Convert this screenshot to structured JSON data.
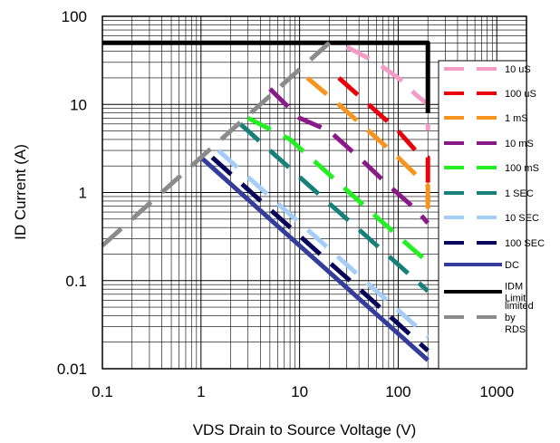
{
  "chart_data": {
    "type": "line",
    "xlabel": "VDS Drain to Source Voltage (V)",
    "ylabel": "ID Current (A)",
    "x_scale": "log",
    "y_scale": "log",
    "xlim": [
      0.1,
      2000
    ],
    "ylim": [
      0.01,
      100
    ],
    "grid": true,
    "legend_position": "right, inside plot",
    "x_ticks": [
      {
        "value": 0.1,
        "label": "0.1"
      },
      {
        "value": 1,
        "label": "1"
      },
      {
        "value": 10,
        "label": "10"
      },
      {
        "value": 100,
        "label": "100"
      },
      {
        "value": 1000,
        "label": "1000"
      }
    ],
    "y_ticks": [
      {
        "value": 100,
        "label": "100"
      },
      {
        "value": 10,
        "label": "10"
      },
      {
        "value": 1,
        "label": "1"
      },
      {
        "value": 0.1,
        "label": "0.1"
      },
      {
        "value": 0.01,
        "label": "0.01"
      }
    ],
    "series": [
      {
        "name": "10 uS",
        "color": "#f59cc6",
        "dashed": true,
        "points": [
          [
            30,
            45
          ],
          [
            60,
            30
          ],
          [
            100,
            20
          ],
          [
            150,
            13
          ],
          [
            200,
            10
          ],
          [
            200,
            5
          ]
        ]
      },
      {
        "name": "100 uS",
        "color": "#e8000b",
        "dashed": true,
        "points": [
          [
            25,
            20
          ],
          [
            50,
            10
          ],
          [
            100,
            5
          ],
          [
            150,
            3
          ],
          [
            200,
            2.5
          ],
          [
            200,
            0.8
          ]
        ]
      },
      {
        "name": "1 mS",
        "color": "#f7941d",
        "dashed": true,
        "points": [
          [
            12,
            20
          ],
          [
            25,
            10
          ],
          [
            50,
            5
          ],
          [
            100,
            2.5
          ],
          [
            150,
            1.6
          ],
          [
            200,
            1.2
          ],
          [
            200,
            0.5
          ]
        ]
      },
      {
        "name": "10 mS",
        "color": "#8b1a89",
        "dashed": true,
        "points": [
          [
            5,
            15
          ],
          [
            10,
            7
          ],
          [
            20,
            5
          ],
          [
            40,
            2.5
          ],
          [
            80,
            1.2
          ],
          [
            150,
            0.65
          ],
          [
            200,
            0.45
          ]
        ]
      },
      {
        "name": "100 mS",
        "color": "#22f022",
        "dashed": true,
        "points": [
          [
            3,
            7
          ],
          [
            8,
            4
          ],
          [
            16,
            2
          ],
          [
            32,
            1
          ],
          [
            64,
            0.5
          ],
          [
            128,
            0.25
          ],
          [
            180,
            0.18
          ],
          [
            200,
            0.15
          ]
        ]
      },
      {
        "name": "1 SEC",
        "color": "#16807a",
        "dashed": true,
        "points": [
          [
            2.5,
            6
          ],
          [
            5,
            3
          ],
          [
            10,
            1.5
          ],
          [
            20,
            0.75
          ],
          [
            40,
            0.38
          ],
          [
            80,
            0.19
          ],
          [
            160,
            0.095
          ],
          [
            200,
            0.076
          ]
        ]
      },
      {
        "name": "10 SEC",
        "color": "#a4cdf8",
        "dashed": true,
        "points": [
          [
            1.5,
            3
          ],
          [
            3,
            1.5
          ],
          [
            6,
            0.75
          ],
          [
            12,
            0.38
          ],
          [
            24,
            0.19
          ],
          [
            48,
            0.095
          ],
          [
            96,
            0.048
          ],
          [
            200,
            0.023
          ]
        ]
      },
      {
        "name": "100 SEC",
        "color": "#06065a",
        "dashed": true,
        "points": [
          [
            1.3,
            2.5
          ],
          [
            2.6,
            1.25
          ],
          [
            5.2,
            0.62
          ],
          [
            10.4,
            0.31
          ],
          [
            20.8,
            0.155
          ],
          [
            41.6,
            0.078
          ],
          [
            83.2,
            0.039
          ],
          [
            200,
            0.016
          ]
        ]
      },
      {
        "name": "DC",
        "color": "#343d9b",
        "dashed": false,
        "points": [
          [
            1,
            2.5
          ],
          [
            10,
            0.25
          ],
          [
            100,
            0.025
          ],
          [
            200,
            0.0125
          ]
        ]
      },
      {
        "name": "IDM Limit",
        "color": "#000000",
        "dashed": false,
        "points": [
          [
            0.1,
            50
          ],
          [
            200,
            50
          ],
          [
            200,
            8
          ]
        ]
      },
      {
        "name": "limited by RDS",
        "color": "#8b8b8b",
        "dashed": true,
        "points": [
          [
            0.1,
            0.25
          ],
          [
            1,
            2.5
          ],
          [
            5,
            12.5
          ],
          [
            10,
            25
          ],
          [
            20,
            50
          ]
        ]
      }
    ]
  }
}
